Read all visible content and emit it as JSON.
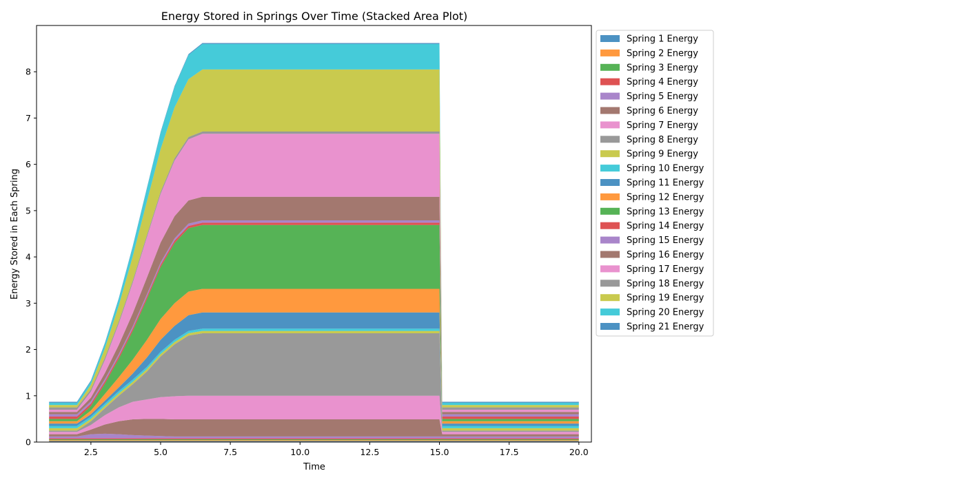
{
  "chart_data": {
    "type": "area",
    "stacked": true,
    "title": "Energy Stored in Springs Over Time (Stacked Area Plot)",
    "xlabel": "Time",
    "ylabel": "Energy Stored in Each Spring",
    "xlim": [
      0.55,
      20.45
    ],
    "ylim": [
      0,
      9.0
    ],
    "xticks": [
      2.5,
      5.0,
      7.5,
      10.0,
      12.5,
      15.0,
      17.5,
      20.0
    ],
    "xtick_labels": [
      "2.5",
      "5.0",
      "7.5",
      "10.0",
      "12.5",
      "15.0",
      "17.5",
      "20.0"
    ],
    "yticks": [
      0,
      1,
      2,
      3,
      4,
      5,
      6,
      7,
      8
    ],
    "ytick_labels": [
      "0",
      "1",
      "2",
      "3",
      "4",
      "5",
      "6",
      "7",
      "8"
    ],
    "grid": false,
    "legend_position": "outside-right",
    "x": [
      1.0,
      2.0,
      2.5,
      3.0,
      3.5,
      4.0,
      4.5,
      5.0,
      5.5,
      6.0,
      6.5,
      15.0,
      15.1,
      15.4,
      16.0,
      20.0
    ],
    "series": [
      {
        "name": "Spring 1 Energy",
        "color": "#1f77b4",
        "values": [
          0.02,
          0.02,
          0.02,
          0.02,
          0.02,
          0.02,
          0.02,
          0.02,
          0.02,
          0.02,
          0.02,
          0.02,
          0.02,
          0.02,
          0.02,
          0.02
        ]
      },
      {
        "name": "Spring 2 Energy",
        "color": "#ff7f0e",
        "values": [
          0.02,
          0.02,
          0.02,
          0.02,
          0.02,
          0.02,
          0.02,
          0.02,
          0.02,
          0.02,
          0.02,
          0.02,
          0.02,
          0.02,
          0.02,
          0.02
        ]
      },
      {
        "name": "Spring 3 Energy",
        "color": "#2ca02c",
        "values": [
          0.02,
          0.02,
          0.02,
          0.02,
          0.02,
          0.02,
          0.02,
          0.02,
          0.02,
          0.02,
          0.02,
          0.02,
          0.02,
          0.02,
          0.02,
          0.02
        ]
      },
      {
        "name": "Spring 4 Energy",
        "color": "#d62728",
        "values": [
          0.02,
          0.02,
          0.02,
          0.02,
          0.02,
          0.02,
          0.02,
          0.02,
          0.02,
          0.02,
          0.02,
          0.02,
          0.02,
          0.02,
          0.02,
          0.02
        ]
      },
      {
        "name": "Spring 5 Energy",
        "color": "#9467bd",
        "values": [
          0.04,
          0.04,
          0.09,
          0.1,
          0.09,
          0.07,
          0.06,
          0.05,
          0.04,
          0.04,
          0.04,
          0.04,
          0.04,
          0.04,
          0.04,
          0.04
        ]
      },
      {
        "name": "Spring 6 Energy",
        "color": "#8c564b",
        "values": [
          0.05,
          0.05,
          0.1,
          0.2,
          0.28,
          0.34,
          0.36,
          0.37,
          0.37,
          0.37,
          0.37,
          0.37,
          0.05,
          0.05,
          0.05,
          0.05
        ]
      },
      {
        "name": "Spring 7 Energy",
        "color": "#e377c2",
        "values": [
          0.05,
          0.05,
          0.1,
          0.2,
          0.3,
          0.38,
          0.42,
          0.47,
          0.5,
          0.51,
          0.51,
          0.51,
          0.05,
          0.05,
          0.05,
          0.05
        ]
      },
      {
        "name": "Spring 8 Energy",
        "color": "#7f7f7f",
        "values": [
          0.03,
          0.03,
          0.08,
          0.15,
          0.25,
          0.38,
          0.6,
          0.88,
          1.12,
          1.3,
          1.35,
          1.35,
          0.03,
          0.03,
          0.03,
          0.03
        ]
      },
      {
        "name": "Spring 9 Energy",
        "color": "#bcbd22",
        "values": [
          0.05,
          0.05,
          0.05,
          0.05,
          0.05,
          0.05,
          0.05,
          0.05,
          0.05,
          0.05,
          0.05,
          0.05,
          0.05,
          0.05,
          0.05,
          0.05
        ]
      },
      {
        "name": "Spring 10 Energy",
        "color": "#17becf",
        "values": [
          0.05,
          0.05,
          0.05,
          0.05,
          0.05,
          0.05,
          0.05,
          0.05,
          0.05,
          0.05,
          0.05,
          0.05,
          0.05,
          0.05,
          0.05,
          0.05
        ]
      },
      {
        "name": "Spring 11 Energy",
        "color": "#1f77b4",
        "values": [
          0.05,
          0.05,
          0.05,
          0.06,
          0.08,
          0.13,
          0.2,
          0.26,
          0.3,
          0.34,
          0.35,
          0.35,
          0.05,
          0.05,
          0.05,
          0.05
        ]
      },
      {
        "name": "Spring 12 Energy",
        "color": "#ff7f0e",
        "values": [
          0.05,
          0.05,
          0.08,
          0.15,
          0.22,
          0.3,
          0.38,
          0.45,
          0.49,
          0.51,
          0.51,
          0.51,
          0.05,
          0.05,
          0.05,
          0.05
        ]
      },
      {
        "name": "Spring 13 Energy",
        "color": "#2ca02c",
        "values": [
          0.05,
          0.05,
          0.1,
          0.22,
          0.4,
          0.62,
          0.88,
          1.12,
          1.3,
          1.37,
          1.38,
          1.38,
          0.05,
          0.05,
          0.05,
          0.05
        ]
      },
      {
        "name": "Spring 14 Energy",
        "color": "#d62728",
        "values": [
          0.05,
          0.05,
          0.05,
          0.05,
          0.05,
          0.05,
          0.05,
          0.05,
          0.05,
          0.05,
          0.05,
          0.05,
          0.05,
          0.05,
          0.05,
          0.05
        ]
      },
      {
        "name": "Spring 15 Energy",
        "color": "#9467bd",
        "values": [
          0.05,
          0.05,
          0.05,
          0.05,
          0.05,
          0.05,
          0.05,
          0.05,
          0.05,
          0.05,
          0.05,
          0.05,
          0.05,
          0.05,
          0.05,
          0.05
        ]
      },
      {
        "name": "Spring 16 Energy",
        "color": "#8c564b",
        "values": [
          0.05,
          0.05,
          0.08,
          0.13,
          0.2,
          0.28,
          0.36,
          0.43,
          0.48,
          0.5,
          0.51,
          0.51,
          0.05,
          0.05,
          0.05,
          0.05
        ]
      },
      {
        "name": "Spring 17 Energy",
        "color": "#e377c2",
        "values": [
          0.05,
          0.05,
          0.13,
          0.28,
          0.46,
          0.66,
          0.87,
          1.05,
          1.2,
          1.32,
          1.36,
          1.36,
          0.05,
          0.05,
          0.05,
          0.05
        ]
      },
      {
        "name": "Spring 18 Energy",
        "color": "#7f7f7f",
        "values": [
          0.05,
          0.05,
          0.05,
          0.05,
          0.05,
          0.05,
          0.05,
          0.05,
          0.05,
          0.05,
          0.05,
          0.05,
          0.05,
          0.05,
          0.05,
          0.05
        ]
      },
      {
        "name": "Spring 19 Energy",
        "color": "#bcbd22",
        "values": [
          0.05,
          0.05,
          0.1,
          0.2,
          0.34,
          0.52,
          0.72,
          0.92,
          1.1,
          1.25,
          1.34,
          1.34,
          0.05,
          0.05,
          0.05,
          0.05
        ]
      },
      {
        "name": "Spring 20 Energy",
        "color": "#17becf",
        "values": [
          0.05,
          0.05,
          0.07,
          0.1,
          0.14,
          0.2,
          0.27,
          0.35,
          0.44,
          0.52,
          0.55,
          0.55,
          0.05,
          0.05,
          0.05,
          0.05
        ]
      },
      {
        "name": "Spring 21 Energy",
        "color": "#1f77b4",
        "values": [
          0.02,
          0.02,
          0.02,
          0.02,
          0.02,
          0.02,
          0.02,
          0.02,
          0.02,
          0.02,
          0.02,
          0.02,
          0.02,
          0.02,
          0.02,
          0.02
        ]
      }
    ]
  }
}
